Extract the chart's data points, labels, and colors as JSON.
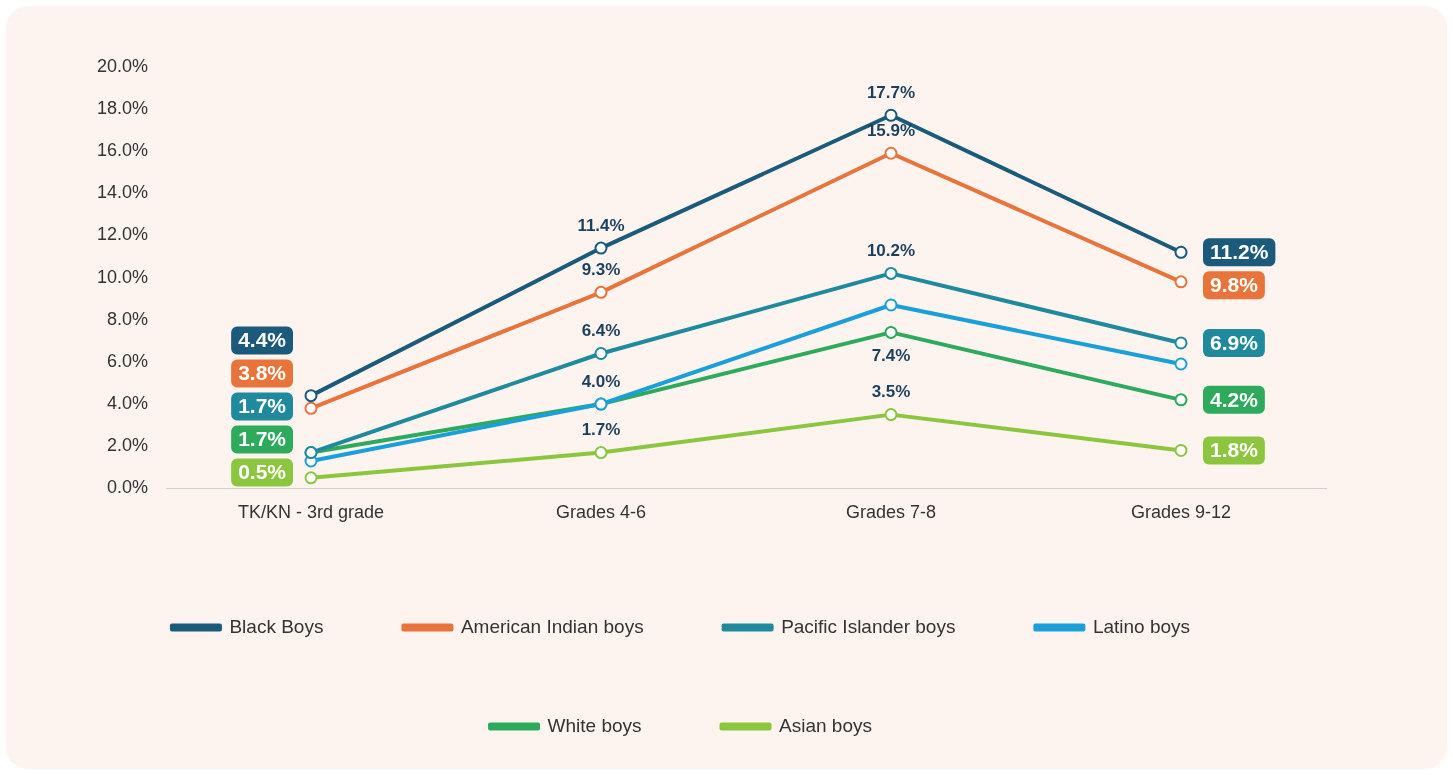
{
  "chart_data": {
    "type": "line",
    "categories": [
      "TK/KN - 3rd grade",
      "Grades 4-6",
      "Grades 7-8",
      "Grades 9-12"
    ],
    "series": [
      {
        "name": "Black Boys",
        "color": "#1b5a7a",
        "values": [
          4.4,
          11.4,
          17.7,
          11.2
        ],
        "value_labels": [
          "4.4%",
          "11.4%",
          "17.7%",
          "11.2%"
        ]
      },
      {
        "name": "American Indian boys",
        "color": "#e8743b",
        "values": [
          3.8,
          9.3,
          15.9,
          9.8
        ],
        "value_labels": [
          "3.8%",
          "9.3%",
          "15.9%",
          "9.8%"
        ]
      },
      {
        "name": "Pacific Islander boys",
        "color": "#1f8a9e",
        "values": [
          1.7,
          6.4,
          10.2,
          6.9
        ],
        "value_labels": [
          "1.7%",
          "6.4%",
          "10.2%",
          "6.9%"
        ]
      },
      {
        "name": "Latino boys",
        "color": "#1a9fd9",
        "values": [
          1.3,
          4.0,
          8.7,
          5.9
        ]
      },
      {
        "name": "White boys",
        "color": "#2eaa5c",
        "values": [
          1.7,
          4.0,
          7.4,
          4.2
        ],
        "value_labels": [
          "1.7%",
          "4.0%",
          "7.4%",
          "4.2%"
        ]
      },
      {
        "name": "Asian boys",
        "color": "#8cc63f",
        "values": [
          0.5,
          1.7,
          3.5,
          1.8
        ],
        "value_labels": [
          "0.5%",
          "1.7%",
          "3.5%",
          "1.8%"
        ]
      }
    ],
    "ylim": [
      0,
      20
    ],
    "yticks": [
      {
        "value": 0,
        "label": "0.0%"
      },
      {
        "value": 2,
        "label": "2.0%"
      },
      {
        "value": 4,
        "label": "4.0%"
      },
      {
        "value": 6,
        "label": "6.0%"
      },
      {
        "value": 8,
        "label": "8.0%"
      },
      {
        "value": 10,
        "label": "10.0%"
      },
      {
        "value": 12,
        "label": "12.0%"
      },
      {
        "value": 14,
        "label": "14.0%"
      },
      {
        "value": 16,
        "label": "16.0%"
      },
      {
        "value": 18,
        "label": "18.0%"
      },
      {
        "value": 20,
        "label": "20.0%"
      }
    ],
    "grid": false,
    "legend": "bottom",
    "marker": "circle",
    "line_style": "solid"
  }
}
